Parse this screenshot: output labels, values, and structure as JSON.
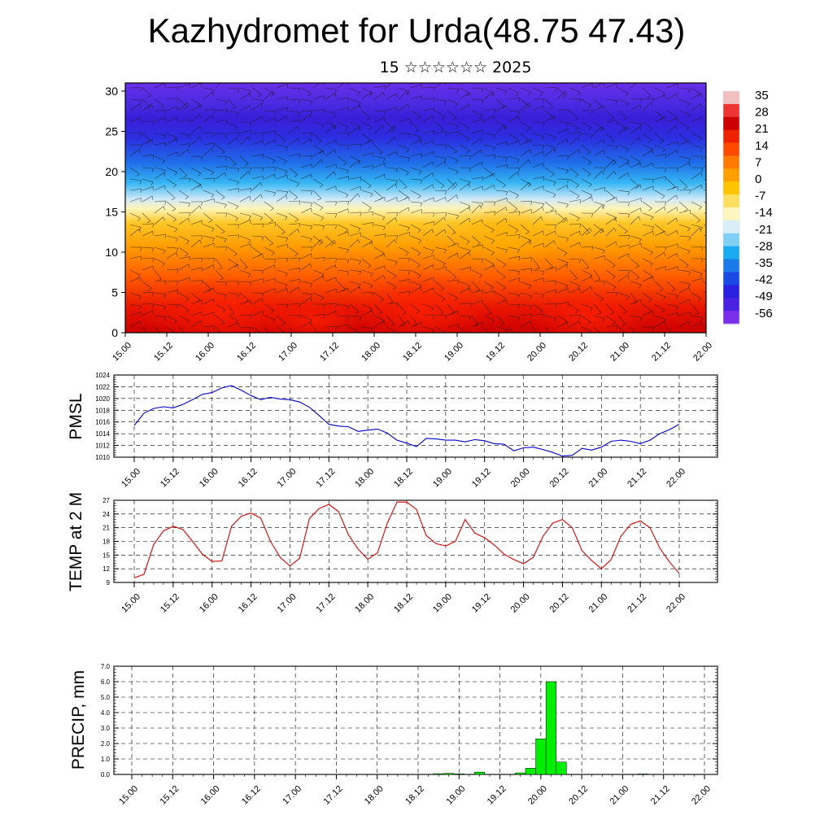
{
  "header": {
    "title": "Kazhydromet for Urda(48.75 47.43)",
    "subtitle": "15 ☆☆☆☆☆☆ 2025"
  },
  "time_ticks": [
    "15.00",
    "15.12",
    "16.00",
    "16.12",
    "17.00",
    "17.12",
    "18.00",
    "18.12",
    "19.00",
    "19.12",
    "20.00",
    "20.12",
    "21.00",
    "21.12",
    "22.00"
  ],
  "colors": {
    "pmsl_line": "#0000cc",
    "temp_line": "#dd0000",
    "precip_bar": "#00ee00",
    "colorbar": [
      "#f2b8b8",
      "#cc0000",
      "#ee2200",
      "#ff6a00",
      "#ffaa00",
      "#ffd21a",
      "#fff7b0",
      "#c8e8f8",
      "#1aaaf0",
      "#1a5ee8",
      "#2a20e0",
      "#6e26e6"
    ]
  },
  "chart_data": [
    {
      "type": "heatmap",
      "title": "",
      "xlabel": "",
      "ylabel": "",
      "ylim": [
        0,
        30
      ],
      "yticks": [
        "0",
        "5",
        "10",
        "15",
        "20",
        "25",
        "30"
      ],
      "colorbar_labels": [
        "35",
        "28",
        "21",
        "14",
        "7",
        "0",
        "-7",
        "-14",
        "-21",
        "-28",
        "-35",
        "-42",
        "-49",
        "-56"
      ],
      "overlay": "wind barbs",
      "grid": false
    },
    {
      "type": "line",
      "ylabel": "PMSL",
      "ylim": [
        1010,
        1024
      ],
      "yticks": [
        "1010",
        "1012",
        "1014",
        "1016",
        "1018",
        "1020",
        "1022",
        "1024"
      ],
      "grid": true,
      "x": [
        0,
        1,
        2,
        3,
        4,
        5,
        6,
        7,
        8,
        9,
        10,
        11,
        12,
        13,
        14,
        15,
        16,
        17,
        18,
        19,
        20,
        21,
        22,
        23,
        24,
        25,
        26,
        27,
        28,
        29,
        30,
        31,
        32,
        33,
        34,
        35,
        36,
        37,
        38,
        39,
        40,
        41,
        42,
        43,
        44,
        45,
        46,
        47,
        48,
        49,
        50,
        51,
        52,
        53,
        54,
        55,
        56
      ],
      "values": [
        1015.4,
        1017.5,
        1018.3,
        1018.6,
        1018.4,
        1019.0,
        1019.8,
        1020.7,
        1021.0,
        1021.8,
        1022.2,
        1021.4,
        1020.5,
        1019.8,
        1020.2,
        1019.9,
        1019.8,
        1019.4,
        1018.5,
        1017.1,
        1015.6,
        1015.3,
        1015.2,
        1014.4,
        1014.6,
        1014.8,
        1014.1,
        1012.9,
        1012.4,
        1011.8,
        1013.2,
        1013.1,
        1012.9,
        1012.9,
        1012.6,
        1013.0,
        1012.8,
        1012.3,
        1012.2,
        1011.1,
        1011.6,
        1011.7,
        1011.3,
        1010.8,
        1010.2,
        1010.3,
        1011.5,
        1011.2,
        1011.7,
        1012.7,
        1012.9,
        1012.7,
        1012.3,
        1012.9,
        1014.0,
        1014.7,
        1015.6
      ]
    },
    {
      "type": "line",
      "ylabel": "TEMP at 2 M",
      "ylim": [
        9,
        27
      ],
      "yticks": [
        "9",
        "12",
        "15",
        "18",
        "21",
        "24",
        "27"
      ],
      "grid": true,
      "x": [
        0,
        1,
        2,
        3,
        4,
        5,
        6,
        7,
        8,
        9,
        10,
        11,
        12,
        13,
        14,
        15,
        16,
        17,
        18,
        19,
        20,
        21,
        22,
        23,
        24,
        25,
        26,
        27,
        28,
        29,
        30,
        31,
        32,
        33,
        34,
        35,
        36,
        37,
        38,
        39,
        40,
        41,
        42,
        43,
        44,
        45,
        46,
        47,
        48,
        49,
        50,
        51,
        52,
        53,
        54,
        55,
        56
      ],
      "values": [
        10.0,
        10.8,
        17.3,
        20.3,
        21.3,
        20.6,
        18.0,
        15.2,
        13.6,
        13.7,
        21.3,
        23.5,
        24.2,
        23.1,
        18.0,
        14.5,
        12.6,
        14.3,
        23.0,
        25.2,
        26.1,
        24.5,
        19.5,
        16.3,
        14.1,
        15.5,
        22.0,
        26.6,
        26.6,
        25.0,
        19.3,
        17.5,
        17.0,
        18.0,
        22.8,
        19.8,
        18.8,
        17.2,
        15.2,
        14.0,
        13.1,
        14.5,
        19.1,
        22.0,
        22.8,
        21.0,
        16.0,
        13.8,
        12.0,
        14.0,
        19.1,
        21.7,
        22.5,
        21.0,
        16.5,
        13.5,
        11.0
      ]
    },
    {
      "type": "bar",
      "ylabel": "PRECIP, mm",
      "ylim": [
        0,
        7
      ],
      "yticks": [
        "0.0",
        "1.0",
        "2.0",
        "3.0",
        "4.0",
        "5.0",
        "6.0",
        "7.0"
      ],
      "grid": true,
      "x": [
        0,
        1,
        2,
        3,
        4,
        5,
        6,
        7,
        8,
        9,
        10,
        11,
        12,
        13,
        14,
        15,
        16,
        17,
        18,
        19,
        20,
        21,
        22,
        23,
        24,
        25,
        26,
        27,
        28,
        29,
        30,
        31,
        32,
        33,
        34,
        35,
        36,
        37,
        38,
        39,
        40,
        41,
        42,
        43,
        44,
        45,
        46,
        47,
        48,
        49,
        50,
        51,
        52,
        53,
        54,
        55,
        56
      ],
      "values": [
        0,
        0,
        0,
        0,
        0,
        0,
        0,
        0,
        0,
        0,
        0,
        0,
        0,
        0,
        0,
        0,
        0,
        0,
        0,
        0,
        0,
        0,
        0,
        0,
        0,
        0,
        0,
        0,
        0,
        0,
        0.05,
        0.07,
        0.04,
        0,
        0.15,
        0,
        0,
        0,
        0.1,
        0.4,
        2.3,
        6.0,
        0.8,
        0,
        0,
        0,
        0,
        0,
        0,
        0,
        0.03,
        0,
        0,
        0,
        0,
        0,
        0
      ]
    }
  ]
}
